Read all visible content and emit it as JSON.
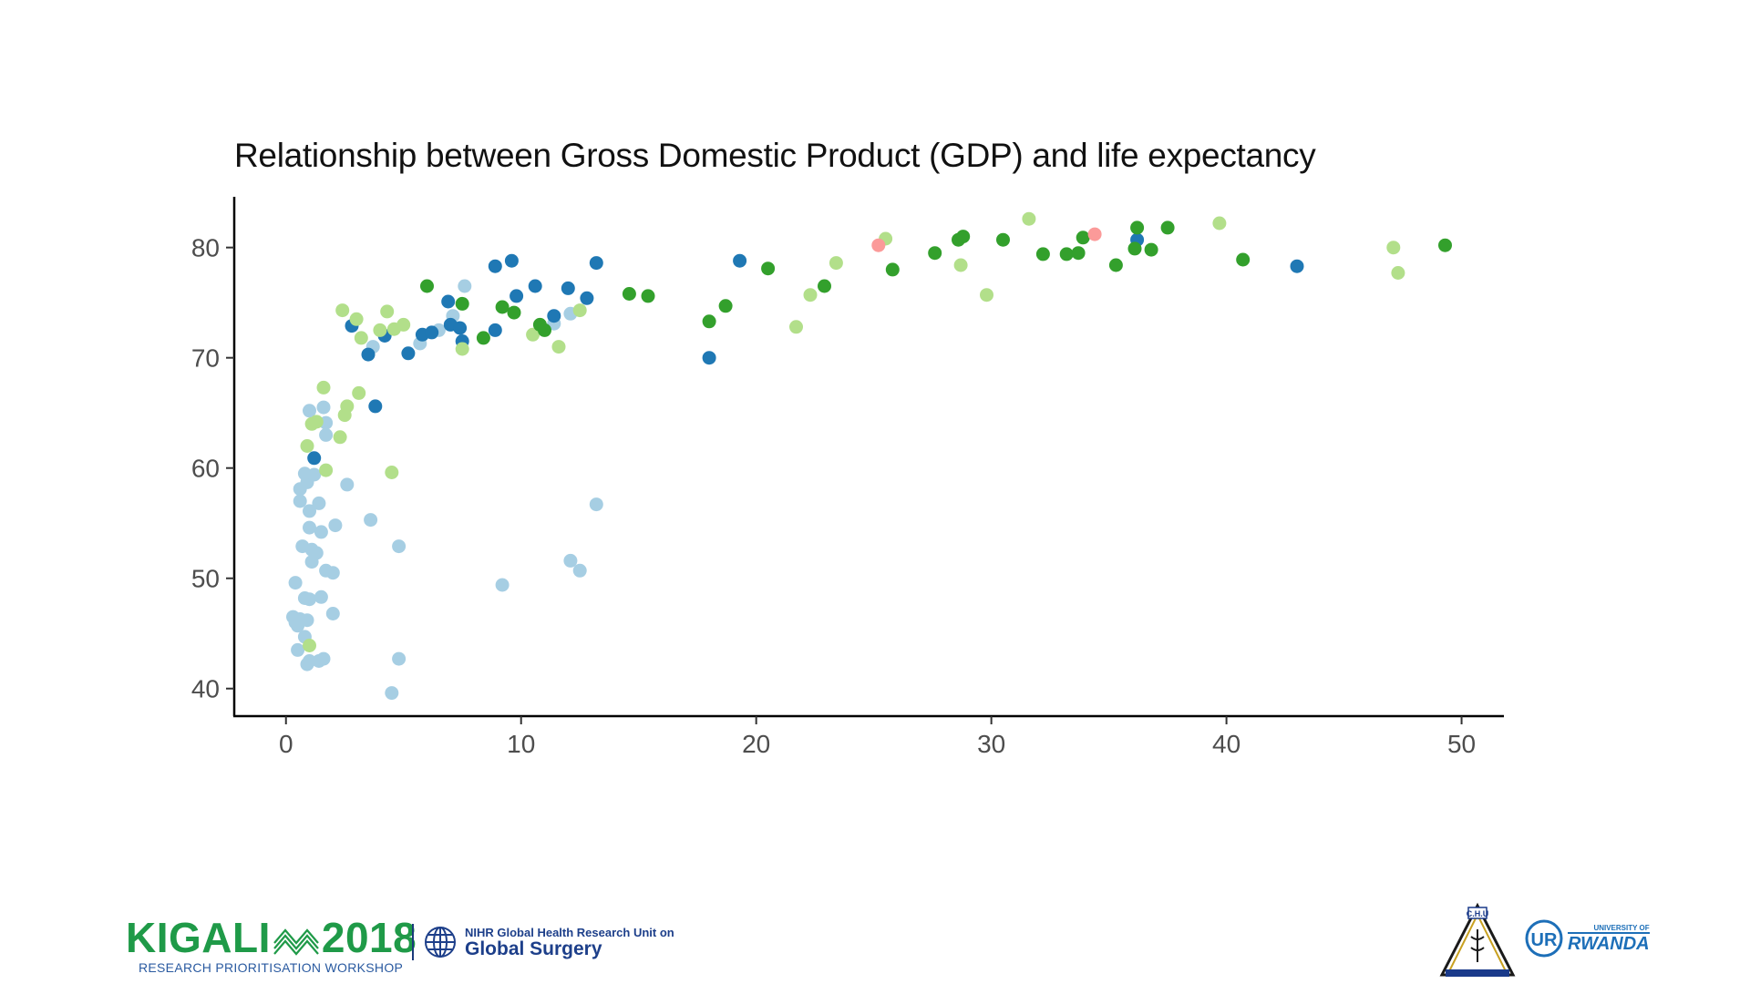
{
  "chart_data": {
    "type": "scatter",
    "title": "Relationship between Gross Domestic Product (GDP) and life expectancy",
    "xlabel": "",
    "ylabel": "",
    "xlim": [
      -2.2,
      51.8
    ],
    "ylim": [
      37.5,
      84.6
    ],
    "x_ticks": [
      0,
      10,
      20,
      30,
      40,
      50
    ],
    "y_ticks": [
      40,
      50,
      60,
      70,
      80
    ],
    "grid": false,
    "legend": "none",
    "colors": {
      "light_blue": "#a6cee3",
      "dark_blue": "#1f78b4",
      "light_green": "#b2df8a",
      "dark_green": "#33a02c",
      "pink": "#fb9a99"
    },
    "series": [
      {
        "color": "light_blue",
        "points": [
          [
            0.3,
            46.5
          ],
          [
            0.4,
            46.0
          ],
          [
            0.5,
            45.7
          ],
          [
            0.6,
            46.3
          ],
          [
            0.9,
            46.2
          ],
          [
            0.5,
            43.5
          ],
          [
            0.8,
            44.7
          ],
          [
            0.9,
            42.2
          ],
          [
            1.0,
            42.5
          ],
          [
            1.4,
            42.5
          ],
          [
            1.6,
            42.7
          ],
          [
            0.4,
            49.6
          ],
          [
            0.8,
            48.2
          ],
          [
            1.0,
            48.1
          ],
          [
            1.5,
            48.3
          ],
          [
            2.0,
            46.8
          ],
          [
            0.7,
            52.9
          ],
          [
            1.1,
            52.6
          ],
          [
            1.3,
            52.3
          ],
          [
            1.1,
            51.5
          ],
          [
            1.7,
            50.7
          ],
          [
            2.0,
            50.5
          ],
          [
            1.0,
            54.6
          ],
          [
            1.5,
            54.2
          ],
          [
            2.1,
            54.8
          ],
          [
            0.6,
            57.0
          ],
          [
            1.4,
            56.8
          ],
          [
            1.0,
            56.1
          ],
          [
            0.6,
            58.1
          ],
          [
            0.9,
            58.7
          ],
          [
            2.6,
            58.5
          ],
          [
            0.8,
            59.5
          ],
          [
            1.2,
            59.4
          ],
          [
            1.0,
            65.2
          ],
          [
            1.6,
            65.5
          ],
          [
            1.7,
            64.1
          ],
          [
            1.7,
            63.0
          ],
          [
            3.6,
            55.3
          ],
          [
            4.8,
            52.9
          ],
          [
            4.5,
            39.6
          ],
          [
            4.8,
            42.7
          ],
          [
            9.2,
            49.4
          ],
          [
            12.1,
            51.6
          ],
          [
            12.5,
            50.7
          ],
          [
            13.2,
            56.7
          ],
          [
            3.7,
            71.0
          ],
          [
            5.7,
            71.3
          ],
          [
            6.5,
            72.5
          ],
          [
            7.1,
            73.8
          ],
          [
            7.6,
            76.5
          ],
          [
            12.1,
            74.0
          ],
          [
            11.4,
            73.1
          ]
        ]
      },
      {
        "color": "dark_blue",
        "points": [
          [
            1.2,
            60.9
          ],
          [
            3.8,
            65.6
          ],
          [
            2.8,
            72.9
          ],
          [
            3.5,
            70.3
          ],
          [
            4.2,
            72.0
          ],
          [
            5.2,
            70.4
          ],
          [
            5.8,
            72.1
          ],
          [
            6.2,
            72.3
          ],
          [
            6.9,
            75.1
          ],
          [
            7.0,
            73.0
          ],
          [
            7.4,
            72.7
          ],
          [
            7.5,
            71.5
          ],
          [
            8.9,
            78.3
          ],
          [
            9.6,
            78.8
          ],
          [
            8.9,
            72.5
          ],
          [
            9.8,
            75.6
          ],
          [
            10.6,
            76.5
          ],
          [
            11.4,
            73.8
          ],
          [
            12.0,
            76.3
          ],
          [
            12.8,
            75.4
          ],
          [
            13.2,
            78.6
          ],
          [
            18.0,
            70.0
          ],
          [
            19.3,
            78.8
          ],
          [
            36.2,
            80.7
          ],
          [
            43.0,
            78.3
          ]
        ]
      },
      {
        "color": "light_green",
        "points": [
          [
            0.9,
            62.0
          ],
          [
            1.1,
            64.0
          ],
          [
            1.3,
            64.2
          ],
          [
            1.6,
            67.3
          ],
          [
            1.7,
            59.8
          ],
          [
            2.3,
            62.8
          ],
          [
            2.5,
            64.8
          ],
          [
            2.6,
            65.6
          ],
          [
            3.1,
            66.8
          ],
          [
            1.0,
            43.9
          ],
          [
            4.5,
            59.6
          ],
          [
            2.4,
            74.3
          ],
          [
            3.0,
            73.5
          ],
          [
            3.2,
            71.8
          ],
          [
            4.0,
            72.5
          ],
          [
            4.3,
            74.2
          ],
          [
            4.6,
            72.6
          ],
          [
            5.0,
            73.0
          ],
          [
            7.5,
            70.8
          ],
          [
            10.5,
            72.1
          ],
          [
            11.6,
            71.0
          ],
          [
            12.5,
            74.3
          ],
          [
            21.7,
            72.8
          ],
          [
            22.3,
            75.7
          ],
          [
            23.4,
            78.6
          ],
          [
            25.5,
            80.8
          ],
          [
            28.7,
            78.4
          ],
          [
            29.8,
            75.7
          ],
          [
            31.6,
            82.6
          ],
          [
            39.7,
            82.2
          ],
          [
            47.1,
            80.0
          ],
          [
            47.3,
            77.7
          ]
        ]
      },
      {
        "color": "dark_green",
        "points": [
          [
            6.0,
            76.5
          ],
          [
            7.5,
            74.9
          ],
          [
            8.4,
            71.8
          ],
          [
            9.2,
            74.6
          ],
          [
            9.7,
            74.1
          ],
          [
            10.8,
            73.0
          ],
          [
            11.0,
            72.5
          ],
          [
            14.6,
            75.8
          ],
          [
            15.4,
            75.6
          ],
          [
            18.0,
            73.3
          ],
          [
            18.7,
            74.7
          ],
          [
            20.5,
            78.1
          ],
          [
            22.9,
            76.5
          ],
          [
            25.8,
            78.0
          ],
          [
            27.6,
            79.5
          ],
          [
            28.6,
            80.7
          ],
          [
            28.8,
            81.0
          ],
          [
            30.5,
            80.7
          ],
          [
            32.2,
            79.4
          ],
          [
            33.2,
            79.4
          ],
          [
            33.7,
            79.5
          ],
          [
            33.9,
            80.9
          ],
          [
            35.3,
            78.4
          ],
          [
            36.1,
            79.9
          ],
          [
            36.2,
            81.8
          ],
          [
            36.8,
            79.8
          ],
          [
            37.5,
            81.8
          ],
          [
            40.7,
            78.9
          ],
          [
            49.3,
            80.2
          ]
        ]
      },
      {
        "color": "pink",
        "points": [
          [
            25.2,
            80.2
          ],
          [
            34.4,
            81.2
          ]
        ]
      }
    ]
  },
  "footer": {
    "kigali_title": "KIGALI",
    "kigali_year": "2018",
    "kigali_subtitle": "RESEARCH PRIORITISATION WORKSHOP",
    "nihr_line1": "NIHR Global Health Research Unit on",
    "nihr_line2": "Global Surgery",
    "chu_label": "C.H.U",
    "ur_small": "UNIVERSITY OF",
    "ur_big": "RWANDA"
  }
}
